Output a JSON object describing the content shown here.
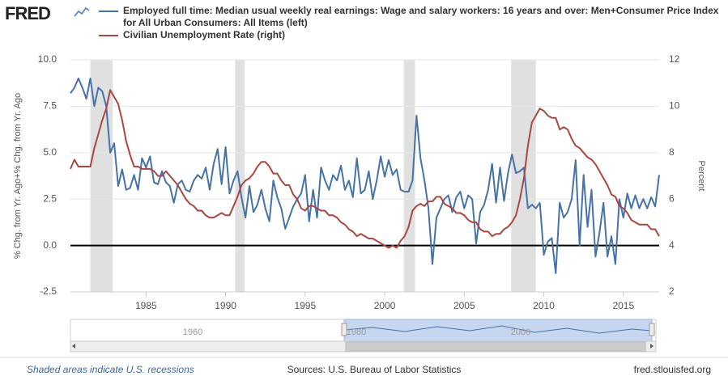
{
  "brand": "FRED",
  "footer": {
    "note": "Shaded areas indicate U.S. recessions",
    "source": "Sources: U.S. Bureau of Labor Statistics",
    "site": "fred.stlouisfed.org"
  },
  "navigator": {
    "labels": [
      "1960",
      "1980",
      "2000"
    ]
  },
  "chart_data": {
    "type": "line",
    "ylabel": "% Chg. from Yr. Ago+% Chg. from Yr. Ago",
    "y2label": "Percent",
    "xlim": [
      1980.25,
      2017.25
    ],
    "xticks": [
      1985,
      1990,
      1995,
      2000,
      2005,
      2010,
      2015
    ],
    "ylim": [
      -2.5,
      10
    ],
    "yticks": [
      -2.5,
      {
        "value": 0,
        "label": "0.0"
      },
      2.5,
      {
        "value": 5,
        "label": "5.0"
      },
      7.5,
      {
        "value": 10,
        "label": "10.0"
      }
    ],
    "y2lim": [
      2,
      12
    ],
    "y2ticks": [
      2,
      4,
      6,
      8,
      10,
      12
    ],
    "grid": true,
    "recessions": [
      [
        1981.5,
        1982.9
      ],
      [
        1990.6,
        1991.2
      ],
      [
        2001.2,
        2001.9
      ],
      [
        2007.95,
        2009.5
      ]
    ],
    "x": [
      1980.25,
      1980.5,
      1980.75,
      1981,
      1981.25,
      1981.5,
      1981.75,
      1982,
      1982.25,
      1982.5,
      1982.75,
      1983,
      1983.25,
      1983.5,
      1983.75,
      1984,
      1984.25,
      1984.5,
      1984.75,
      1985,
      1985.25,
      1985.5,
      1985.75,
      1986,
      1986.25,
      1986.5,
      1986.75,
      1987,
      1987.25,
      1987.5,
      1987.75,
      1988,
      1988.25,
      1988.5,
      1988.75,
      1989,
      1989.25,
      1989.5,
      1989.75,
      1990,
      1990.25,
      1990.5,
      1990.75,
      1991,
      1991.25,
      1991.5,
      1991.75,
      1992,
      1992.25,
      1992.5,
      1992.75,
      1993,
      1993.25,
      1993.5,
      1993.75,
      1994,
      1994.25,
      1994.5,
      1994.75,
      1995,
      1995.25,
      1995.5,
      1995.75,
      1996,
      1996.25,
      1996.5,
      1996.75,
      1997,
      1997.25,
      1997.5,
      1997.75,
      1998,
      1998.25,
      1998.5,
      1998.75,
      1999,
      1999.25,
      1999.5,
      1999.75,
      2000,
      2000.25,
      2000.5,
      2000.75,
      2001,
      2001.25,
      2001.5,
      2001.75,
      2002,
      2002.25,
      2002.5,
      2002.75,
      2003,
      2003.25,
      2003.5,
      2003.75,
      2004,
      2004.25,
      2004.5,
      2004.75,
      2005,
      2005.25,
      2005.5,
      2005.75,
      2006,
      2006.25,
      2006.5,
      2006.75,
      2007,
      2007.25,
      2007.5,
      2007.75,
      2008,
      2008.25,
      2008.5,
      2008.75,
      2009,
      2009.25,
      2009.5,
      2009.75,
      2010,
      2010.25,
      2010.5,
      2010.75,
      2011,
      2011.25,
      2011.5,
      2011.75,
      2012,
      2012.25,
      2012.5,
      2012.75,
      2013,
      2013.25,
      2013.5,
      2013.75,
      2014,
      2014.25,
      2014.5,
      2014.75,
      2015,
      2015.25,
      2015.5,
      2015.75,
      2016,
      2016.25,
      2016.5,
      2016.75,
      2017,
      2017.25
    ],
    "series": [
      {
        "name": "Employed full time: Median usual weekly real earnings: Wage and salary workers: 16 years and over: Men+Consumer Price Index for All Urban Consumers: All Items (left)",
        "color": "#4572a7",
        "axis": "y",
        "values": [
          8.2,
          8.5,
          9.0,
          8.5,
          7.9,
          9.0,
          7.5,
          8.5,
          8.3,
          7.5,
          5.0,
          5.5,
          3.2,
          4.1,
          3.0,
          3.1,
          3.8,
          3.0,
          4.7,
          4.2,
          4.8,
          3.4,
          3.3,
          4.0,
          3.4,
          3.2,
          2.3,
          3.3,
          3.5,
          3.0,
          2.9,
          3.5,
          3.8,
          3.6,
          4.2,
          3.0,
          4.4,
          5.2,
          3.3,
          5.3,
          2.8,
          3.5,
          4.0,
          2.6,
          1.5,
          3.2,
          1.8,
          2.2,
          3.0,
          2.0,
          1.3,
          3.5,
          2.6,
          2.0,
          0.9,
          1.5,
          2.1,
          2.5,
          2.8,
          3.8,
          1.3,
          3.0,
          1.5,
          4.2,
          3.5,
          3.0,
          3.8,
          3.5,
          4.3,
          3.0,
          3.5,
          2.6,
          4.7,
          2.8,
          3.0,
          4.0,
          2.5,
          3.5,
          4.8,
          3.7,
          4.6,
          3.8,
          4.1,
          3.0,
          2.9,
          2.9,
          3.5,
          7.0,
          4.7,
          3.5,
          2.0,
          -1.0,
          1.5,
          2.0,
          2.5,
          2.7,
          1.8,
          2.6,
          2.9,
          2.0,
          2.7,
          2.5,
          0.1,
          1.8,
          2.2,
          3.0,
          4.4,
          2.3,
          4.2,
          2.4,
          3.9,
          4.9,
          3.9,
          4.0,
          4.2,
          2.0,
          2.2,
          2.0,
          2.3,
          -0.5,
          0.2,
          0.4,
          -1.5,
          2.3,
          1.5,
          1.8,
          2.5,
          4.6,
          0.0,
          3.8,
          1.0,
          3.0,
          -0.6,
          0.7,
          2.3,
          -0.6,
          0.5,
          -1.0,
          2.5,
          1.5,
          2.8,
          2.0,
          2.7,
          2.0,
          2.5,
          2.0,
          2.6,
          2.1,
          3.8
        ]
      },
      {
        "name": "Civilian Unemployment Rate (right)",
        "color": "#aa4643",
        "axis": "y2",
        "values": [
          7.3,
          7.7,
          7.4,
          7.4,
          7.4,
          7.4,
          8.2,
          8.8,
          9.4,
          9.9,
          10.7,
          10.4,
          10.1,
          9.4,
          8.5,
          7.9,
          7.4,
          7.4,
          7.3,
          7.3,
          7.3,
          7.2,
          7.0,
          7.0,
          7.2,
          7.0,
          6.8,
          6.6,
          6.3,
          6.0,
          5.8,
          5.7,
          5.5,
          5.5,
          5.3,
          5.2,
          5.2,
          5.3,
          5.4,
          5.3,
          5.3,
          5.7,
          6.1,
          6.6,
          6.8,
          6.9,
          7.1,
          7.4,
          7.6,
          7.6,
          7.4,
          7.1,
          7.1,
          6.8,
          6.6,
          6.6,
          6.2,
          6.0,
          5.6,
          5.5,
          5.7,
          5.7,
          5.6,
          5.5,
          5.5,
          5.3,
          5.3,
          5.2,
          5.0,
          4.9,
          4.7,
          4.6,
          4.4,
          4.5,
          4.4,
          4.3,
          4.3,
          4.2,
          4.1,
          4.0,
          3.9,
          4.0,
          3.9,
          4.2,
          4.4,
          4.8,
          5.5,
          5.7,
          5.8,
          5.7,
          5.9,
          5.9,
          6.1,
          6.1,
          5.8,
          5.7,
          5.6,
          5.4,
          5.4,
          5.3,
          5.1,
          5.0,
          5.0,
          4.7,
          4.6,
          4.6,
          4.4,
          4.5,
          4.5,
          4.7,
          4.8,
          5.0,
          5.3,
          6.0,
          6.9,
          8.3,
          9.3,
          9.6,
          9.9,
          9.8,
          9.6,
          9.5,
          9.5,
          9.0,
          9.1,
          9.0,
          8.6,
          8.3,
          8.2,
          8.0,
          7.8,
          7.7,
          7.5,
          7.2,
          6.9,
          6.6,
          6.2,
          6.1,
          5.7,
          5.6,
          5.4,
          5.1,
          5.0,
          4.9,
          4.9,
          4.9,
          4.7,
          4.7,
          4.4
        ]
      }
    ]
  }
}
